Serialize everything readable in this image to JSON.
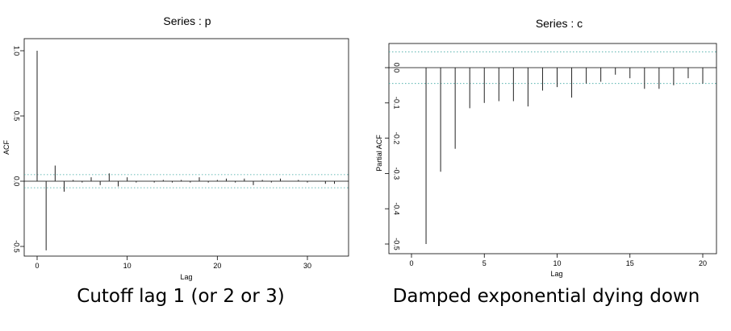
{
  "chart_data": [
    {
      "type": "bar",
      "title": "Series : p",
      "xlabel": "Lag",
      "ylabel": "ACF",
      "caption": "Cutoff lag 1 (or 2 or 3)",
      "xlim": [
        -1,
        34
      ],
      "ylim": [
        -0.55,
        1.05
      ],
      "xticks": [
        "0",
        "10",
        "20",
        "30"
      ],
      "yticks": [
        "-0.5",
        "0.0",
        "0.5",
        "1.0"
      ],
      "conf_band": 0.05,
      "x": [
        0,
        1,
        2,
        3,
        4,
        5,
        6,
        7,
        8,
        9,
        10,
        11,
        12,
        13,
        14,
        15,
        16,
        17,
        18,
        19,
        20,
        21,
        22,
        23,
        24,
        25,
        26,
        27,
        28,
        29,
        30,
        31,
        32,
        33
      ],
      "values": [
        1.0,
        -0.53,
        0.12,
        -0.08,
        0.01,
        -0.01,
        0.03,
        -0.03,
        0.06,
        -0.04,
        0.03,
        -0.01,
        0.0,
        -0.01,
        0.01,
        -0.01,
        0.01,
        -0.01,
        0.03,
        -0.01,
        0.01,
        0.02,
        -0.01,
        0.02,
        -0.03,
        0.01,
        -0.01,
        0.02,
        0.0,
        0.01,
        -0.01,
        0.0,
        -0.02,
        -0.02
      ]
    },
    {
      "type": "bar",
      "title": "Series : c",
      "xlabel": "Lag",
      "ylabel": "Partial ACF",
      "caption": "Damped exponential dying down",
      "xlim": [
        -0.5,
        21
      ],
      "ylim": [
        -0.52,
        0.06
      ],
      "xticks": [
        "0",
        "5",
        "10",
        "15",
        "20"
      ],
      "yticks": [
        "-0.5",
        "-0.4",
        "-0.3",
        "-0.2",
        "-0.1",
        "0.0"
      ],
      "conf_band": 0.045,
      "x": [
        1,
        2,
        3,
        4,
        5,
        6,
        7,
        8,
        9,
        10,
        11,
        12,
        13,
        14,
        15,
        16,
        17,
        18,
        19,
        20
      ],
      "values": [
        -0.5,
        -0.295,
        -0.23,
        -0.115,
        -0.1,
        -0.095,
        -0.095,
        -0.11,
        -0.065,
        -0.055,
        -0.085,
        -0.045,
        -0.04,
        -0.02,
        -0.03,
        -0.06,
        -0.06,
        -0.05,
        -0.03,
        -0.045
      ]
    }
  ]
}
